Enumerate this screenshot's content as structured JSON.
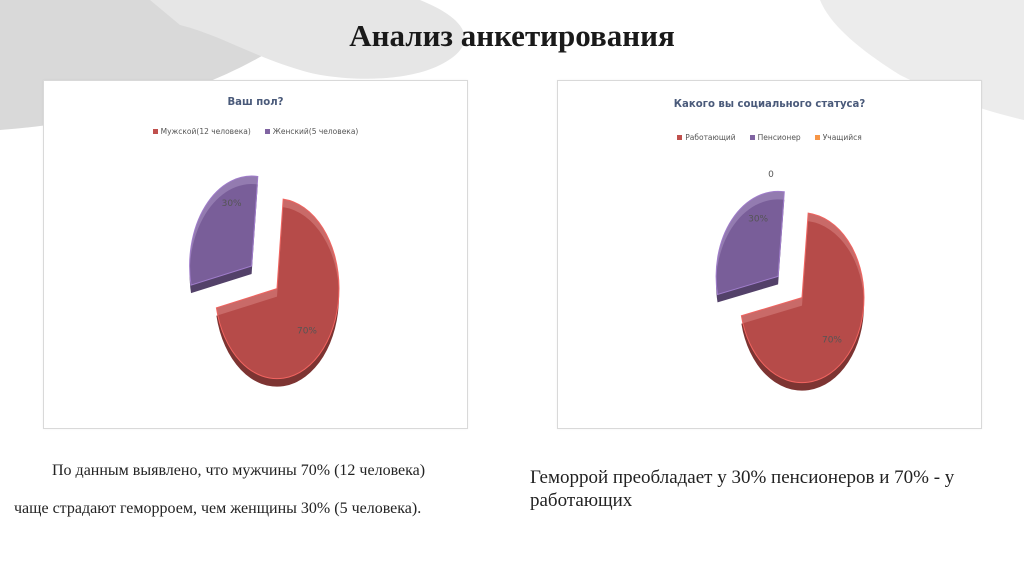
{
  "slide_title": "Анализ анкетирования",
  "chart_data": [
    {
      "type": "pie",
      "title": "Ваш пол?",
      "categories": [
        "Мужской(12 человека)",
        "Женский(5 человека)"
      ],
      "values": [
        70,
        30
      ],
      "data_labels": [
        "70%",
        "30%"
      ],
      "colors": [
        "#c0504d",
        "#8064a2"
      ],
      "legend": "top"
    },
    {
      "type": "pie",
      "title": "Какого вы социального статуса?",
      "categories": [
        "Работающий",
        "Пенсионер",
        "Учащийся"
      ],
      "values": [
        70,
        30,
        0
      ],
      "data_labels": [
        "70%",
        "30%",
        "0"
      ],
      "colors": [
        "#c0504d",
        "#8064a2",
        "#f79646"
      ],
      "legend": "top"
    }
  ],
  "captions": {
    "left_line1": "По данным выявлено, что мужчины 70% (12 человека)",
    "left_line2": "чаще страдают геморроем, чем женщины 30% (5 человека).",
    "right_line1": "Геморрой преобладает у 30% пенсионеров и 70% - у",
    "right_line2": "работающих"
  }
}
